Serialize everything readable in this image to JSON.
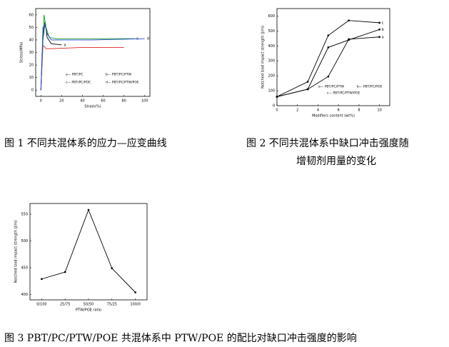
{
  "chart_data": [
    {
      "type": "line",
      "caption": [
        "图 1  不同共混体系的应力—应变曲线"
      ],
      "xlabel": "Strain(%)",
      "ylabel": "Stress(MPa)",
      "xlim": [
        -5,
        105
      ],
      "xticks": [
        0,
        20,
        40,
        60,
        80,
        100
      ],
      "ylim": [
        -5,
        65
      ],
      "yticks": [
        0,
        10,
        20,
        30,
        40,
        50,
        60
      ],
      "series": [
        {
          "name": "a— PBT/PC",
          "label": "a",
          "color": "#000000",
          "x": [
            0,
            2,
            4,
            6,
            10,
            20
          ],
          "values": [
            0,
            40,
            55,
            42,
            37,
            36
          ]
        },
        {
          "name": "b— PBT/PC/PTW",
          "color": "#e02020",
          "x": [
            0,
            2,
            3,
            5,
            10,
            40,
            80
          ],
          "values": [
            0,
            35,
            35,
            33,
            33,
            34,
            34
          ]
        },
        {
          "name": "c— PBT/PC/POE",
          "label": "c",
          "color": "#10a020",
          "x": [
            0,
            3,
            5,
            8,
            15,
            50,
            90
          ],
          "values": [
            0,
            60,
            50,
            42,
            41,
            41,
            41
          ]
        },
        {
          "name": "d— PBT/PC/PTW/POE",
          "label": "d",
          "color": "#2040d0",
          "x": [
            0,
            2,
            4,
            6,
            10,
            50,
            100
          ],
          "values": [
            0,
            50,
            52,
            45,
            40,
            40,
            41
          ]
        }
      ]
    },
    {
      "type": "line",
      "caption": [
        "图 2    不同共混体系中缺口冲击强度随",
        "增韧剂用量的变化"
      ],
      "xlabel": "Modifiers content (wt%)",
      "ylabel": "Notched Izod impact strength (J/m)",
      "xlim": [
        0,
        11
      ],
      "xticks": [
        0,
        2,
        4,
        6,
        8,
        10
      ],
      "ylim": [
        0,
        650
      ],
      "yticks": [
        0,
        100,
        200,
        300,
        400,
        500,
        600
      ],
      "series": [
        {
          "name": "a— PBT/PC/PTW",
          "label": "a",
          "color": "#000000",
          "x": [
            0,
            3,
            5,
            7,
            10
          ],
          "values": [
            60,
            110,
            195,
            445,
            460
          ]
        },
        {
          "name": "b— PBT/PC/POE",
          "label": "b",
          "color": "#000000",
          "x": [
            0,
            3,
            5,
            7,
            10
          ],
          "values": [
            60,
            110,
            390,
            440,
            510
          ]
        },
        {
          "name": "c— PBT/PC/PTW/POE",
          "label": "c",
          "color": "#000000",
          "x": [
            0,
            3,
            5,
            7,
            10
          ],
          "values": [
            60,
            160,
            470,
            570,
            555
          ]
        }
      ]
    },
    {
      "type": "line",
      "caption": [
        "图 3 PBT/PC/PTW/POE 共混体系中 PTW/POE 的配比对缺口冲击强度的影响"
      ],
      "xlabel": "PTW/POE ratio",
      "ylabel": "Notched Izod impact strength (J/m)",
      "categories": [
        "0/100",
        "25/75",
        "50/50",
        "75/25",
        "100/0"
      ],
      "ylim": [
        390,
        570
      ],
      "yticks": [
        400,
        450,
        500,
        550
      ],
      "series": [
        {
          "color": "#000000",
          "values": [
            429,
            442,
            558,
            449,
            404
          ]
        }
      ]
    }
  ]
}
